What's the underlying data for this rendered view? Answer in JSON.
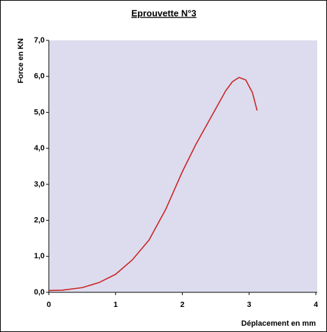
{
  "chart_data": {
    "type": "line",
    "title": "Eprouvette N°3",
    "xlabel": "Déplacement en mm",
    "ylabel": "Force en KN",
    "x": [
      0,
      0.2,
      0.5,
      0.75,
      1.0,
      1.25,
      1.5,
      1.75,
      2.0,
      2.2,
      2.35,
      2.5,
      2.65,
      2.75,
      2.85,
      2.95,
      3.05,
      3.12
    ],
    "values": [
      0.05,
      0.06,
      0.13,
      0.27,
      0.5,
      0.9,
      1.45,
      2.3,
      3.35,
      4.1,
      4.6,
      5.1,
      5.6,
      5.85,
      5.97,
      5.9,
      5.55,
      5.05
    ],
    "color": "#cc2222",
    "xlim": [
      0,
      4
    ],
    "xticks": [
      0,
      1,
      2,
      3,
      4
    ],
    "ylim": [
      0,
      7
    ],
    "yticks": [
      {
        "value": 0,
        "label": "0,0"
      },
      {
        "value": 1,
        "label": "1,0"
      },
      {
        "value": 2,
        "label": "2,0"
      },
      {
        "value": 3,
        "label": "3,0"
      },
      {
        "value": 4,
        "label": "4,0"
      },
      {
        "value": 5,
        "label": "5,0"
      },
      {
        "value": 6,
        "label": "6,0"
      },
      {
        "value": 7,
        "label": "7,0"
      }
    ],
    "grid": false
  }
}
